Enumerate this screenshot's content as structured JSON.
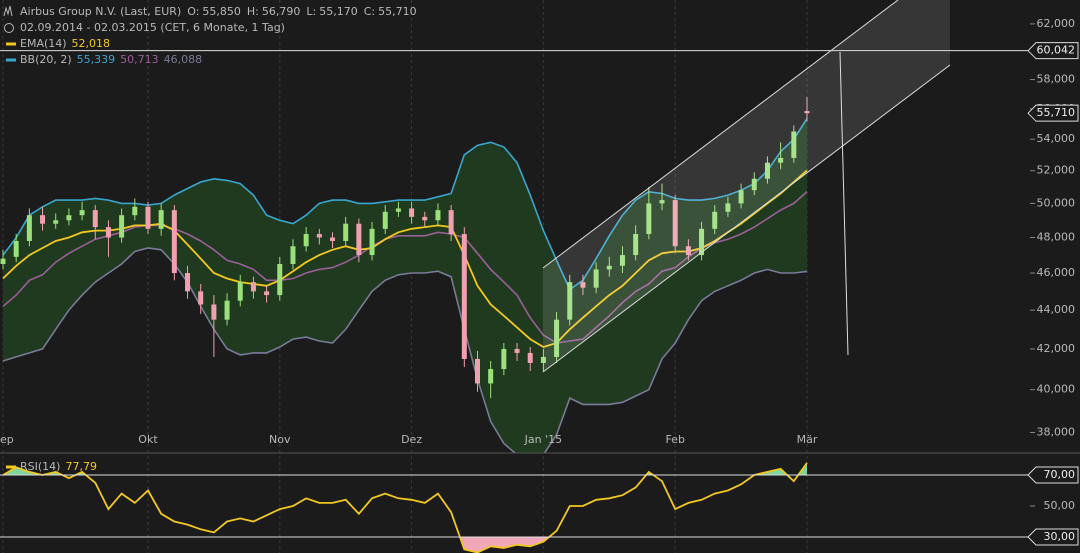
{
  "chart_data": [
    {
      "type": "candlestick",
      "title": "Airbus Group N.V. (Last, EUR)",
      "quote": [
        {
          "label": "O:",
          "value": "55,850"
        },
        {
          "label": "H:",
          "value": "56,790"
        },
        {
          "label": "L:",
          "value": "55,170"
        },
        {
          "label": "C:",
          "value": "55,710"
        }
      ],
      "subtitle": "02.09.2014 - 02.03.2015 (CET, 6 Monate, 1 Tag)",
      "categories": [
        "ep",
        null,
        null,
        null,
        null,
        null,
        null,
        null,
        null,
        null,
        null,
        "Okt",
        null,
        null,
        null,
        null,
        null,
        null,
        null,
        null,
        null,
        "Nov",
        null,
        null,
        null,
        null,
        null,
        null,
        null,
        null,
        null,
        "Dez",
        null,
        null,
        null,
        null,
        null,
        null,
        null,
        null,
        null,
        "Jan '15",
        null,
        null,
        null,
        null,
        null,
        null,
        null,
        null,
        null,
        "Feb",
        null,
        null,
        null,
        null,
        null,
        null,
        null,
        null,
        null,
        "Mär"
      ],
      "open": [
        46.5,
        46.9,
        47.8,
        49.3,
        48.8,
        49.0,
        49.3,
        49.6,
        48.6,
        48.0,
        49.3,
        49.8,
        48.5,
        49.6,
        46.0,
        45.0,
        44.3,
        43.5,
        44.5,
        45.5,
        45.0,
        44.8,
        46.5,
        47.5,
        48.2,
        48.0,
        47.8,
        48.8,
        47.0,
        48.5,
        49.5,
        49.7,
        49.2,
        49.0,
        49.6,
        48.2,
        41.5,
        40.3,
        41.0,
        42.0,
        41.8,
        41.3,
        41.6,
        43.5,
        45.5,
        45.2,
        46.2,
        46.4,
        47.0,
        48.2,
        50.0,
        50.2,
        47.5,
        47.0,
        48.5,
        49.5,
        50.0,
        50.8,
        51.5,
        52.5,
        52.8,
        55.85
      ],
      "high": [
        47.3,
        48.2,
        49.7,
        49.8,
        49.4,
        49.7,
        50.1,
        49.9,
        49.0,
        49.7,
        50.3,
        50.1,
        50.0,
        49.9,
        46.4,
        45.4,
        44.8,
        44.9,
        45.9,
        45.8,
        45.3,
        46.9,
        47.9,
        48.6,
        48.5,
        48.3,
        49.2,
        49.1,
        48.9,
        49.9,
        50.1,
        50.1,
        49.5,
        50.0,
        49.9,
        48.6,
        41.9,
        41.4,
        42.3,
        42.3,
        42.1,
        42.0,
        43.9,
        45.9,
        45.9,
        46.6,
        46.9,
        47.5,
        48.7,
        51.0,
        51.2,
        50.5,
        47.9,
        48.9,
        49.9,
        50.4,
        51.2,
        51.9,
        52.9,
        53.8,
        54.9,
        56.79
      ],
      "low": [
        46.2,
        46.6,
        47.5,
        48.4,
        48.5,
        48.7,
        49.0,
        47.9,
        46.9,
        47.7,
        49.0,
        48.2,
        48.1,
        45.6,
        44.6,
        43.8,
        41.6,
        43.2,
        44.2,
        44.6,
        44.4,
        44.5,
        46.2,
        47.2,
        47.6,
        47.4,
        47.5,
        46.6,
        46.7,
        48.2,
        49.2,
        48.8,
        48.6,
        48.7,
        47.8,
        41.1,
        39.9,
        39.6,
        40.7,
        41.4,
        40.9,
        40.9,
        41.3,
        43.2,
        44.8,
        44.9,
        45.8,
        46.0,
        46.7,
        47.9,
        49.6,
        47.1,
        46.7,
        46.7,
        48.2,
        49.2,
        49.7,
        50.5,
        51.2,
        52.1,
        52.5,
        55.17
      ],
      "close": [
        46.8,
        47.8,
        49.3,
        48.8,
        49.0,
        49.3,
        49.6,
        48.6,
        48.0,
        49.3,
        49.8,
        48.5,
        49.6,
        46.0,
        45.0,
        44.3,
        43.5,
        44.5,
        45.5,
        45.0,
        44.8,
        46.5,
        47.5,
        48.2,
        48.0,
        47.8,
        48.8,
        47.0,
        48.5,
        49.5,
        49.7,
        49.2,
        49.0,
        49.6,
        48.2,
        41.5,
        40.3,
        41.0,
        42.0,
        41.8,
        41.3,
        41.6,
        43.5,
        45.5,
        45.2,
        46.2,
        46.4,
        47.0,
        48.2,
        50.0,
        50.2,
        47.5,
        47.0,
        48.5,
        49.5,
        50.0,
        50.8,
        51.5,
        52.5,
        52.8,
        54.5,
        55.71
      ],
      "up_color": "#9be07a",
      "down_color": "#f0a0b0",
      "log": true,
      "ylim": [
        37.3,
        63.8
      ],
      "yticks": [
        {
          "value": 38,
          "label": "38,000"
        },
        {
          "value": 40,
          "label": "40,000"
        },
        {
          "value": 42,
          "label": "42,000"
        },
        {
          "value": 44,
          "label": "44,000"
        },
        {
          "value": 46,
          "label": "46,000"
        },
        {
          "value": 48,
          "label": "48,000"
        },
        {
          "value": 50,
          "label": "50,000"
        },
        {
          "value": 52,
          "label": "52,000"
        },
        {
          "value": 54,
          "label": "54,000"
        },
        {
          "value": 56,
          "label": "56,000"
        },
        {
          "value": 58,
          "label": "58,000"
        },
        {
          "value": 60,
          "label": "60,000"
        },
        {
          "value": 62,
          "label": "62,000"
        }
      ],
      "series": [
        {
          "name": "EMA(14)",
          "color": "#f2c81e",
          "legend_value": "52,018",
          "values": [
            45.7,
            46.4,
            47.0,
            47.4,
            47.8,
            48.0,
            48.3,
            48.4,
            48.4,
            48.5,
            48.7,
            48.7,
            48.8,
            48.4,
            47.6,
            46.8,
            46.0,
            45.7,
            45.5,
            45.4,
            45.3,
            45.6,
            46.1,
            46.6,
            47.0,
            47.3,
            47.5,
            47.3,
            47.4,
            47.9,
            48.3,
            48.5,
            48.6,
            48.7,
            48.6,
            47.0,
            45.3,
            44.3,
            43.7,
            43.1,
            42.5,
            42.1,
            42.3,
            43.0,
            43.6,
            44.2,
            44.8,
            45.3,
            46.0,
            46.7,
            47.1,
            47.2,
            47.2,
            47.4,
            47.8,
            48.3,
            48.8,
            49.4,
            50.0,
            50.6,
            51.3,
            52.018
          ]
        }
      ],
      "bollinger": {
        "name": "BB(20, 2)",
        "fill": "#1f3a1f",
        "bands": [
          {
            "color": "#3aa6d0",
            "legend_value": "55,339",
            "values": [
              47.0,
              48.0,
              49.3,
              49.8,
              50.2,
              50.2,
              50.2,
              50.3,
              50.2,
              50.0,
              50.0,
              49.9,
              50.0,
              50.5,
              50.9,
              51.3,
              51.5,
              51.4,
              51.2,
              50.5,
              49.3,
              49.0,
              48.8,
              49.3,
              50.0,
              50.2,
              50.2,
              50.0,
              50.0,
              50.1,
              50.2,
              50.2,
              50.2,
              50.4,
              50.6,
              53.0,
              53.6,
              53.8,
              53.5,
              52.5,
              50.5,
              48.4,
              46.7,
              45.1,
              45.6,
              46.8,
              48.1,
              49.3,
              50.2,
              50.7,
              50.6,
              50.3,
              50.2,
              50.2,
              50.3,
              50.5,
              50.8,
              51.2,
              52.0,
              53.2,
              54.0,
              55.339
            ]
          },
          {
            "color": "#9a5f98",
            "legend_value": "50,713",
            "values": [
              44.2,
              44.8,
              45.6,
              45.9,
              46.6,
              47.1,
              47.5,
              47.9,
              48.1,
              48.3,
              48.6,
              48.7,
              48.7,
              48.5,
              48.2,
              47.8,
              47.3,
              46.7,
              46.5,
              46.2,
              45.6,
              45.6,
              45.7,
              46.0,
              46.2,
              46.3,
              46.6,
              47.0,
              47.5,
              47.9,
              48.1,
              48.1,
              48.1,
              48.3,
              48.2,
              48.0,
              47.1,
              46.2,
              45.5,
              44.8,
              43.6,
              42.7,
              42.3,
              42.4,
              42.5,
              43.1,
              43.7,
              44.4,
              45.0,
              45.4,
              46.1,
              46.3,
              46.9,
              47.4,
              47.7,
              47.9,
              48.2,
              48.6,
              49.1,
              49.6,
              50.0,
              50.713
            ]
          },
          {
            "color": "#7a7a9a",
            "legend_value": "46,088",
            "values": [
              41.4,
              41.6,
              41.8,
              42.0,
              43.0,
              44.0,
              44.8,
              45.5,
              46.0,
              46.5,
              47.2,
              47.4,
              47.3,
              46.5,
              45.5,
              44.2,
              43.0,
              42.0,
              41.7,
              41.8,
              41.8,
              42.1,
              42.5,
              42.6,
              42.4,
              42.3,
              43.0,
              44.0,
              45.0,
              45.6,
              45.9,
              46.0,
              46.0,
              46.1,
              45.8,
              43.0,
              40.5,
              38.5,
              37.5,
              37.0,
              36.6,
              37.0,
              37.9,
              39.6,
              39.3,
              39.3,
              39.3,
              39.4,
              39.7,
              40.0,
              41.5,
              42.3,
              43.5,
              44.5,
              45.0,
              45.3,
              45.6,
              46.0,
              46.2,
              46.0,
              46.0,
              46.088
            ]
          }
        ]
      },
      "hline": {
        "value": 60.042,
        "label": "60,042"
      },
      "last_price": {
        "value": 55.71,
        "label": "55,710"
      }
    },
    {
      "type": "line",
      "series": [
        {
          "name": "RSI(14)",
          "color": "#f2c81e",
          "legend_value": "77,79",
          "values": [
            70,
            75,
            72,
            70,
            72,
            68,
            72,
            65,
            48,
            58,
            52,
            60,
            45,
            40,
            38,
            35,
            33,
            40,
            42,
            40,
            44,
            48,
            50,
            55,
            52,
            52,
            54,
            45,
            55,
            58,
            55,
            54,
            52,
            58,
            46,
            22,
            20,
            24,
            23,
            25,
            24,
            27,
            34,
            50,
            50,
            54,
            55,
            57,
            62,
            72,
            66,
            48,
            52,
            54,
            58,
            60,
            64,
            70,
            72,
            74,
            66,
            77.79
          ]
        }
      ],
      "ylim": [
        19.7,
        82.9
      ],
      "yticks": [
        {
          "value": 30,
          "label": "30,00"
        },
        {
          "value": 50,
          "label": "50,00"
        },
        {
          "value": 70,
          "label": "70,00"
        }
      ],
      "overbought": 70,
      "oversold": 30,
      "overbought_color": "#7fd4a0",
      "oversold_color": "#f0a8b8"
    }
  ]
}
